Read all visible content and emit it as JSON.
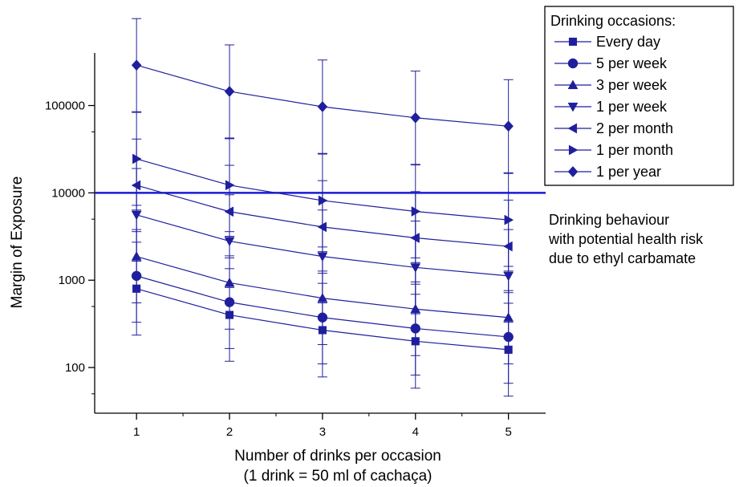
{
  "chart_data": {
    "type": "line",
    "x": [
      1,
      2,
      3,
      4,
      5
    ],
    "xlabel": "Number of drinks per occasion",
    "xlabel_note": "(1 drink = 50 ml of cachaça)",
    "ylabel": "Margin of Exposure",
    "yscale": "log",
    "ylim": [
      30,
      400000
    ],
    "xlim": [
      0.55,
      5.4
    ],
    "xticks": [
      "1",
      "2",
      "3",
      "4",
      "5"
    ],
    "yticks": [
      "100",
      "1000",
      "10000",
      "100000"
    ],
    "threshold": {
      "value": 10000,
      "annotation": [
        "Drinking behaviour",
        "with potential health risk",
        "due to ethyl carbamate"
      ]
    },
    "legend": {
      "title": "Drinking occasions:",
      "position": "top-right"
    },
    "grid": false,
    "color": "#1f1f9e",
    "series": [
      {
        "name": "Every day",
        "marker": "square",
        "values": [
          800,
          400,
          268,
          200,
          160
        ],
        "lower": [
          235,
          118,
          78,
          58,
          47
        ]
      },
      {
        "name": "5 per week",
        "marker": "circle",
        "values": [
          1120,
          560,
          374,
          280,
          224
        ],
        "lower": [
          330,
          165,
          110,
          82,
          66
        ]
      },
      {
        "name": "3 per week",
        "marker": "triangle-up",
        "values": [
          1870,
          935,
          623,
          467,
          374
        ],
        "lower": [
          550,
          275,
          183,
          137,
          110
        ]
      },
      {
        "name": "1 per week",
        "marker": "triangle-down",
        "values": [
          5600,
          2800,
          1870,
          1400,
          1120
        ],
        "lower": [
          1650,
          825,
          550,
          412,
          330
        ]
      },
      {
        "name": "2 per month",
        "marker": "triangle-left",
        "values": [
          12200,
          6100,
          4070,
          3050,
          2440
        ],
        "lower": [
          3600,
          1800,
          1200,
          900,
          720
        ]
      },
      {
        "name": "1 per month",
        "marker": "triangle-right",
        "values": [
          24500,
          12250,
          8170,
          6130,
          4900
        ],
        "lower": [
          7200,
          3600,
          2400,
          1800,
          1440
        ]
      },
      {
        "name": "1 per year",
        "marker": "diamond",
        "values": [
          290000,
          145000,
          97000,
          72500,
          58000
        ],
        "lower": [
          85000,
          42500,
          28300,
          21200,
          17000
        ]
      }
    ]
  }
}
